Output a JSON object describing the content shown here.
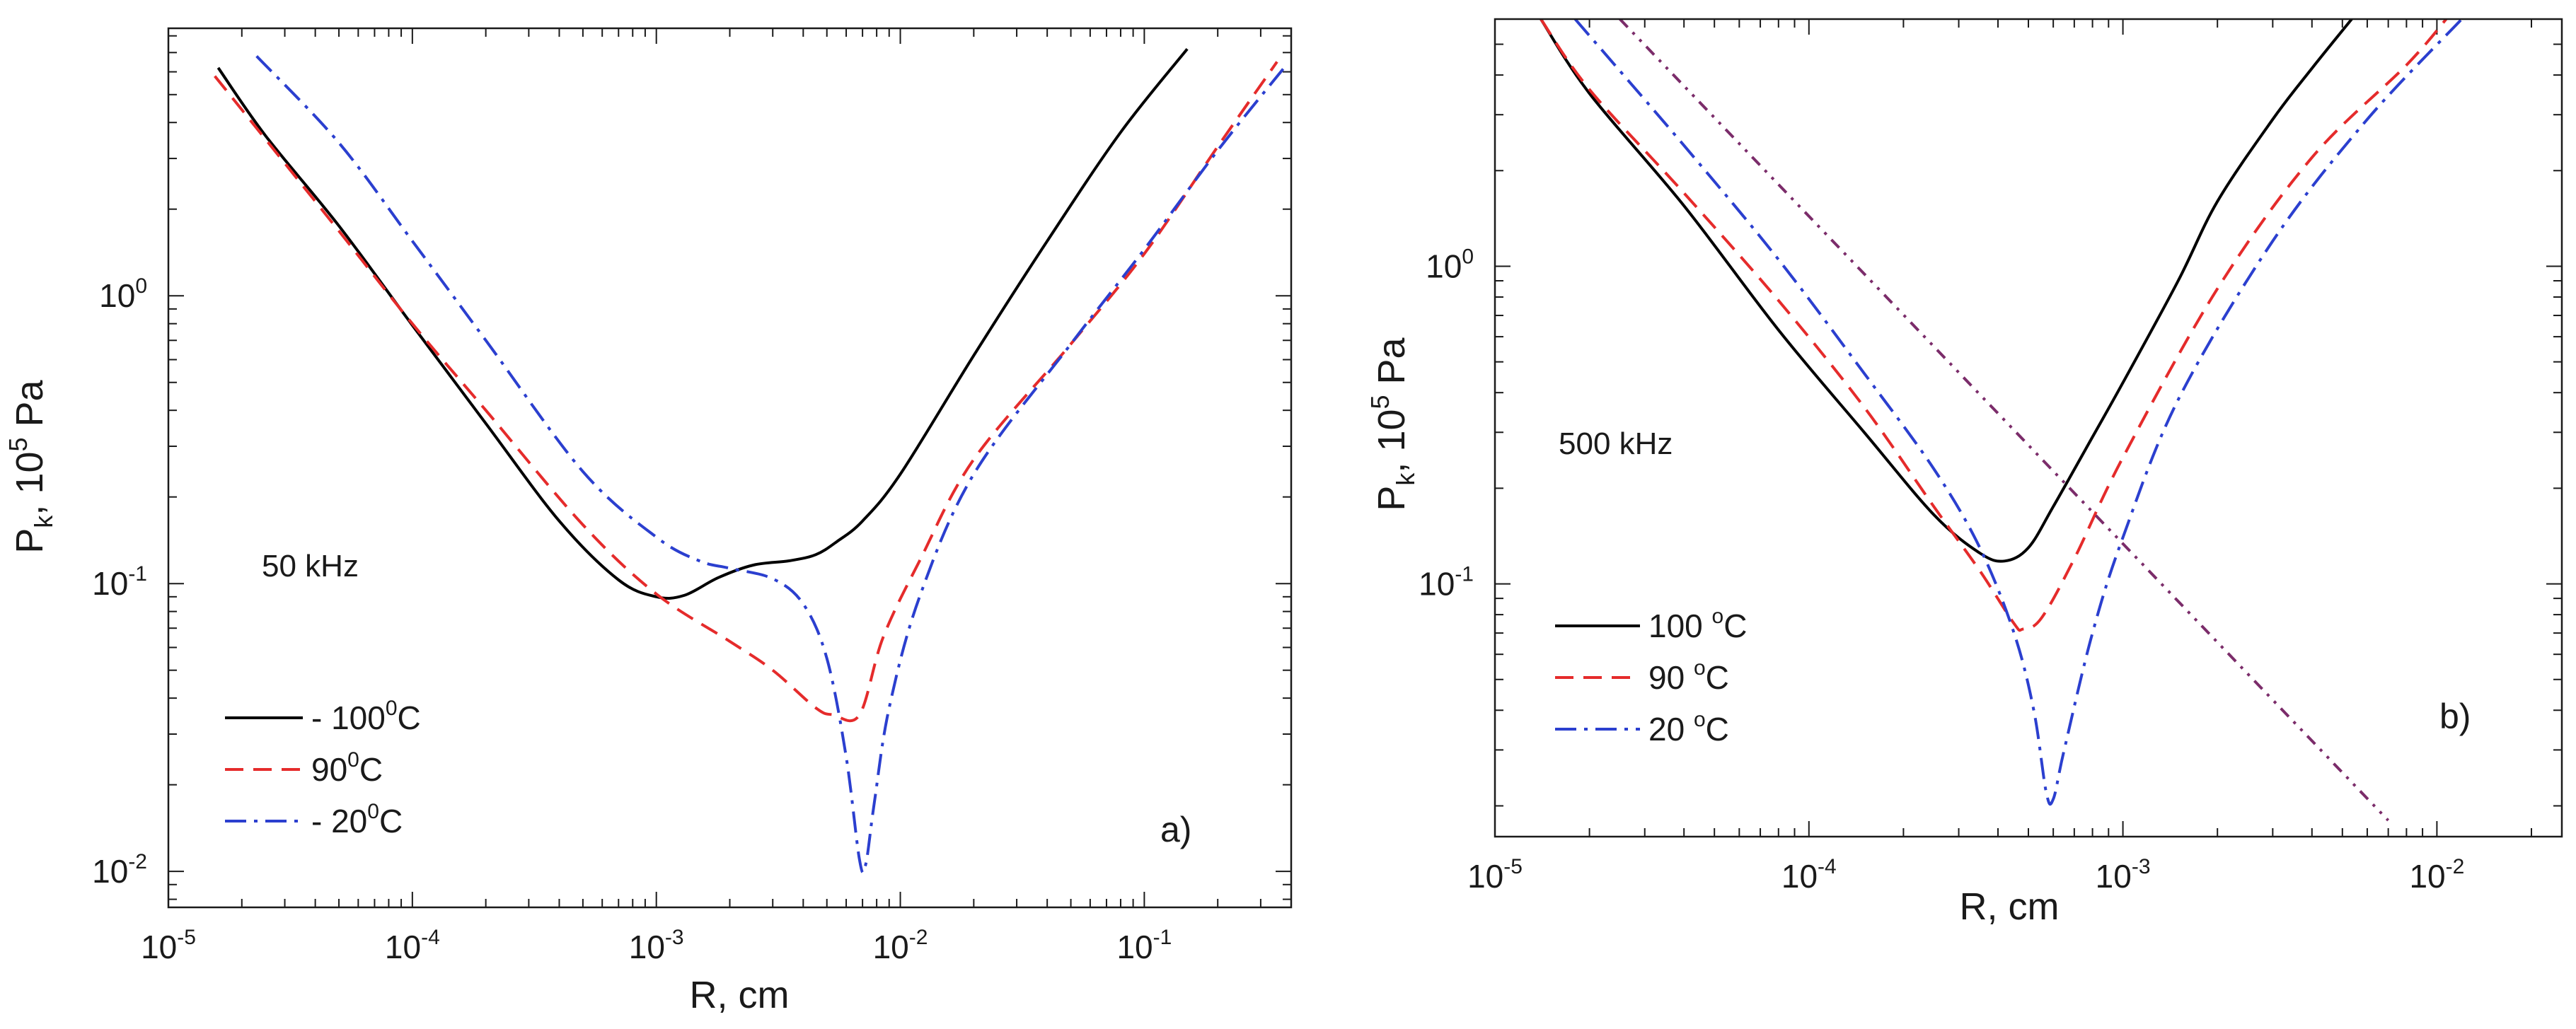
{
  "chart_data": [
    {
      "panel_label": "a)",
      "type": "line",
      "x_scale": "log",
      "y_scale": "log",
      "xlim": [
        1e-05,
        0.4
      ],
      "ylim": [
        0.0075,
        8.5
      ],
      "xticks": [
        {
          "base": "10",
          "exp": "-5",
          "value": 1e-05
        },
        {
          "base": "10",
          "exp": "-4",
          "value": 0.0001
        },
        {
          "base": "10",
          "exp": "-3",
          "value": 0.001
        },
        {
          "base": "10",
          "exp": "-2",
          "value": 0.01
        },
        {
          "base": "10",
          "exp": "-1",
          "value": 0.1
        }
      ],
      "yticks": [
        {
          "base": "10",
          "exp": "0",
          "value": 1
        },
        {
          "base": "10",
          "exp": "-1",
          "value": 0.1
        },
        {
          "base": "10",
          "exp": "-2",
          "value": 0.01
        }
      ],
      "xlabel": "R, cm",
      "ylabel": {
        "main": "P",
        "sub": "k",
        "mid": ", 10",
        "sup": "5",
        "unit": " Pa"
      },
      "annotation": "50 kHz",
      "legend": {
        "position": "bottom-left",
        "entries": [
          {
            "prefix": "- 100",
            "sup": "0",
            "unit": "C"
          },
          {
            "prefix": "90",
            "sup": "0",
            "unit": "C"
          },
          {
            "prefix": "- 20",
            "sup": "0",
            "unit": "C"
          }
        ]
      },
      "series": [
        {
          "name": "100 °C",
          "color": "#000000",
          "dash": "solid",
          "x": [
            1.6e-05,
            2.5e-05,
            5e-05,
            0.0001,
            0.0002,
            0.0004,
            0.0007,
            0.001,
            0.0013,
            0.0018,
            0.0025,
            0.0035,
            0.0045,
            0.0055,
            0.007,
            0.01,
            0.02,
            0.04,
            0.08,
            0.15
          ],
          "y": [
            6.2,
            3.6,
            1.75,
            0.79,
            0.36,
            0.165,
            0.103,
            0.09,
            0.091,
            0.105,
            0.116,
            0.12,
            0.126,
            0.14,
            0.165,
            0.24,
            0.62,
            1.55,
            3.7,
            7.2
          ]
        },
        {
          "name": "90 °C",
          "color": "#e52b2b",
          "dash": "dashed",
          "x": [
            1.55e-05,
            2.5e-05,
            5e-05,
            0.0001,
            0.0002,
            0.0005,
            0.001,
            0.002,
            0.003,
            0.0045,
            0.0053,
            0.0068,
            0.0085,
            0.012,
            0.02,
            0.05,
            0.1,
            0.2,
            0.35
          ],
          "y": [
            5.8,
            3.5,
            1.68,
            0.8,
            0.4,
            0.16,
            0.092,
            0.063,
            0.05,
            0.037,
            0.035,
            0.035,
            0.065,
            0.12,
            0.27,
            0.68,
            1.4,
            3.3,
            6.5
          ]
        },
        {
          "name": "20 °C",
          "color": "#2b3fcf",
          "dash": "dashdot",
          "x": [
            2.3e-05,
            5e-05,
            0.0001,
            0.0002,
            0.0005,
            0.001,
            0.0015,
            0.002,
            0.003,
            0.004,
            0.005,
            0.006,
            0.0068,
            0.0072,
            0.0078,
            0.009,
            0.012,
            0.02,
            0.05,
            0.1,
            0.2,
            0.38
          ],
          "y": [
            6.8,
            3.4,
            1.55,
            0.7,
            0.245,
            0.145,
            0.12,
            0.113,
            0.104,
            0.085,
            0.055,
            0.025,
            0.011,
            0.0105,
            0.017,
            0.037,
            0.09,
            0.24,
            0.68,
            1.45,
            3.2,
            6.3
          ]
        }
      ]
    },
    {
      "panel_label": "b)",
      "type": "line",
      "x_scale": "log",
      "y_scale": "log",
      "xlim": [
        1e-05,
        0.025
      ],
      "ylim": [
        0.016,
        6.0
      ],
      "xticks": [
        {
          "base": "10",
          "exp": "-5",
          "value": 1e-05
        },
        {
          "base": "10",
          "exp": "-4",
          "value": 0.0001
        },
        {
          "base": "10",
          "exp": "-3",
          "value": 0.001
        },
        {
          "base": "10",
          "exp": "-2",
          "value": 0.01
        }
      ],
      "yticks": [
        {
          "base": "10",
          "exp": "0",
          "value": 1
        },
        {
          "base": "10",
          "exp": "-1",
          "value": 0.1
        }
      ],
      "xlabel": "R, cm",
      "ylabel": {
        "main": "P",
        "sub": "k",
        "mid": ", 10",
        "sup": "5",
        "unit": " Pa"
      },
      "annotation": "500 kHz",
      "legend": {
        "position": "bottom-left",
        "entries": [
          {
            "prefix": "100 ",
            "sup": "o",
            "unit": "C"
          },
          {
            "prefix": "90 ",
            "sup": "o",
            "unit": "C"
          },
          {
            "prefix": "20 ",
            "sup": "o",
            "unit": "C"
          }
        ]
      },
      "series": [
        {
          "name": "100 °C",
          "color": "#000000",
          "dash": "solid",
          "x": [
            1.4e-05,
            2e-05,
            4e-05,
            8e-05,
            0.00015,
            0.00025,
            0.00035,
            0.00042,
            0.0005,
            0.0006,
            0.0008,
            0.001,
            0.0015,
            0.002,
            0.003,
            0.004,
            0.0055
          ],
          "y": [
            6.0,
            3.5,
            1.55,
            0.63,
            0.3,
            0.165,
            0.125,
            0.118,
            0.13,
            0.175,
            0.29,
            0.43,
            0.9,
            1.6,
            2.9,
            4.2,
            6.2
          ]
        },
        {
          "name": "90 °C",
          "color": "#e52b2b",
          "dash": "dashed",
          "x": [
            1.4e-05,
            2e-05,
            4e-05,
            8e-05,
            0.00015,
            0.00025,
            0.00035,
            0.00045,
            0.00048,
            0.00055,
            0.0007,
            0.001,
            0.002,
            0.004,
            0.008,
            0.011
          ],
          "y": [
            6.0,
            3.6,
            1.7,
            0.78,
            0.36,
            0.175,
            0.11,
            0.075,
            0.072,
            0.078,
            0.12,
            0.25,
            0.85,
            2.2,
            4.3,
            6.2
          ]
        },
        {
          "name": "20 °C",
          "color": "#2b3fcf",
          "dash": "dashdot",
          "x": [
            1.8e-05,
            4e-05,
            8e-05,
            0.00015,
            0.00025,
            0.00035,
            0.00045,
            0.00052,
            0.00057,
            0.0006,
            0.00065,
            0.0008,
            0.001,
            0.0015,
            0.003,
            0.006,
            0.012
          ],
          "y": [
            6.0,
            2.4,
            1.05,
            0.46,
            0.23,
            0.13,
            0.07,
            0.04,
            0.022,
            0.021,
            0.03,
            0.07,
            0.14,
            0.38,
            1.2,
            2.9,
            6.0
          ]
        },
        {
          "name": "reference line",
          "color": "#7b2c6a",
          "dash": "dashdotdot",
          "x": [
            2.5e-05,
            0.007
          ],
          "y": [
            6.0,
            0.018
          ]
        }
      ]
    }
  ]
}
